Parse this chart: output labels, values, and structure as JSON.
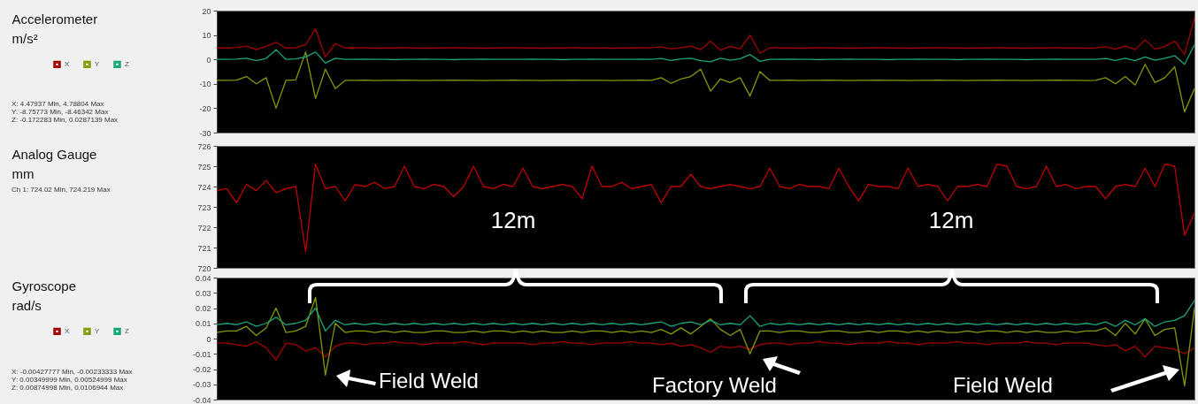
{
  "chart_data": [
    {
      "type": "line",
      "ylabel": "Accelerometer\nm/s²",
      "legend": "left",
      "tick_labels": "y",
      "categories": [
        null,
        null,
        null,
        null,
        null,
        null,
        null,
        null,
        null,
        null,
        null,
        null,
        null,
        null,
        null,
        null,
        null,
        null,
        null,
        null,
        null,
        null,
        null,
        null,
        null,
        null,
        null,
        null,
        null,
        null,
        null,
        null,
        null,
        null,
        null,
        null,
        null,
        null,
        null,
        null,
        null,
        null,
        null,
        null,
        null,
        null,
        null,
        null,
        null,
        null,
        null,
        null,
        null,
        null,
        null,
        null,
        null,
        null,
        null,
        null,
        null,
        null,
        null,
        null,
        null,
        null,
        null,
        null,
        null,
        null,
        null,
        null,
        null,
        null,
        null,
        null,
        null,
        null,
        null,
        null,
        null,
        null,
        null,
        null,
        null,
        null,
        null,
        null,
        null,
        null,
        null,
        null,
        null,
        null,
        null,
        null,
        null,
        null,
        null,
        null
      ],
      "ylim": [
        -30,
        20
      ],
      "yticks": [
        -30,
        -20,
        -10,
        0,
        10,
        20
      ],
      "series": [
        {
          "name": "X",
          "color": "#a30000",
          "values": [
            4.7,
            4.7,
            4.8,
            5.5,
            4.0,
            5.4,
            7.0,
            4.6,
            4.8,
            6.0,
            12.5,
            1.0,
            6.5,
            4.7,
            4.7,
            4.8,
            4.6,
            4.7,
            4.7,
            4.8,
            4.7,
            4.6,
            4.7,
            4.7,
            4.8,
            4.7,
            4.7,
            4.6,
            4.7,
            4.7,
            4.8,
            4.7,
            4.7,
            4.6,
            4.7,
            4.7,
            4.8,
            4.7,
            4.7,
            4.7,
            4.6,
            4.7,
            4.7,
            4.8,
            4.7,
            5.2,
            4.3,
            4.8,
            5.5,
            4.0,
            7.5,
            3.8,
            5.3,
            4.3,
            10.0,
            2.5,
            4.8,
            4.7,
            4.7,
            4.6,
            4.7,
            4.8,
            4.7,
            4.7,
            4.6,
            4.7,
            4.7,
            4.8,
            4.7,
            4.7,
            4.6,
            4.7,
            4.7,
            4.8,
            4.7,
            4.7,
            4.6,
            4.7,
            4.7,
            4.8,
            4.7,
            4.7,
            4.6,
            4.7,
            4.7,
            4.8,
            4.7,
            4.7,
            4.6,
            4.7,
            5.2,
            4.2,
            5.5,
            4.0,
            8.0,
            4.2,
            5.3,
            7.5,
            2.0,
            17.0
          ]
        },
        {
          "name": "Y",
          "color": "#7f9c00",
          "values": [
            -8.6,
            -8.6,
            -8.5,
            -7.0,
            -10.0,
            -7.5,
            -20.0,
            -8.6,
            -8.4,
            3.0,
            -16.0,
            -4.0,
            -12.0,
            -8.6,
            -8.6,
            -8.5,
            -8.7,
            -8.6,
            -8.6,
            -8.5,
            -8.6,
            -8.7,
            -8.6,
            -8.6,
            -8.5,
            -8.6,
            -8.6,
            -8.7,
            -8.6,
            -8.6,
            -8.5,
            -8.6,
            -8.6,
            -8.7,
            -8.6,
            -8.6,
            -8.5,
            -8.6,
            -8.6,
            -8.6,
            -8.7,
            -8.6,
            -8.6,
            -8.5,
            -8.6,
            -7.5,
            -9.8,
            -8.0,
            -7.0,
            -4.0,
            -13.0,
            -8.0,
            -9.5,
            -7.5,
            -15.0,
            -5.0,
            -8.6,
            -8.6,
            -8.5,
            -8.7,
            -8.6,
            -8.6,
            -8.5,
            -8.6,
            -8.7,
            -8.6,
            -8.6,
            -8.5,
            -8.6,
            -8.6,
            -8.7,
            -8.6,
            -8.6,
            -8.5,
            -8.6,
            -8.6,
            -8.7,
            -8.6,
            -8.6,
            -8.5,
            -8.6,
            -8.6,
            -8.7,
            -8.6,
            -8.6,
            -8.5,
            -8.6,
            -8.6,
            -8.7,
            -8.6,
            -7.5,
            -10.0,
            -7.0,
            -10.5,
            -2.0,
            -9.5,
            -7.5,
            -3.0,
            -21.5,
            -12.0
          ]
        },
        {
          "name": "Z",
          "color": "#1aa57c",
          "values": [
            0,
            0,
            0.1,
            0.5,
            -0.5,
            0.4,
            4.0,
            0,
            0.2,
            1.0,
            3.0,
            -1.5,
            0.5,
            0,
            0,
            0.1,
            0,
            0,
            -0.1,
            0,
            0,
            0.1,
            0,
            0,
            -0.1,
            0,
            0,
            0.1,
            0,
            0,
            0,
            0,
            0.1,
            0,
            0,
            -0.1,
            0,
            0,
            0.1,
            0,
            0,
            0,
            0,
            0.1,
            0,
            0.4,
            -0.4,
            0.2,
            0.5,
            -0.5,
            -1.0,
            0.5,
            -0.3,
            0.3,
            2.0,
            -0.8,
            0,
            0,
            0.1,
            0,
            0,
            -0.1,
            0,
            0,
            0.1,
            0,
            0,
            0,
            -0.1,
            0,
            0,
            0.1,
            0,
            0,
            0,
            -0.1,
            0,
            0,
            0.1,
            0,
            0,
            0,
            -0.1,
            0,
            0,
            0.1,
            0,
            0,
            0,
            0,
            0.4,
            -0.4,
            0.5,
            -0.5,
            1.0,
            -0.3,
            0.5,
            1.5,
            -2.0,
            6.0
          ]
        }
      ],
      "annotations": [
        "X: 4.47937 Min, 4.78804 Max",
        "Y: -8.75773 Min, -8.46342 Max",
        "Z: -0.172283 Min, 0.0287139 Max"
      ]
    },
    {
      "type": "line",
      "ylabel": "Analog Gauge\nmm",
      "tick_labels": "y",
      "categories": [
        null,
        null,
        null,
        null,
        null,
        null,
        null,
        null,
        null,
        null,
        null,
        null,
        null,
        null,
        null,
        null,
        null,
        null,
        null,
        null,
        null,
        null,
        null,
        null,
        null,
        null,
        null,
        null,
        null,
        null,
        null,
        null,
        null,
        null,
        null,
        null,
        null,
        null,
        null,
        null,
        null,
        null,
        null,
        null,
        null,
        null,
        null,
        null,
        null,
        null,
        null,
        null,
        null,
        null,
        null,
        null,
        null,
        null,
        null,
        null,
        null,
        null,
        null,
        null,
        null,
        null,
        null,
        null,
        null,
        null,
        null,
        null,
        null,
        null,
        null,
        null,
        null,
        null,
        null,
        null,
        null,
        null,
        null,
        null,
        null,
        null,
        null,
        null,
        null,
        null,
        null,
        null,
        null,
        null,
        null,
        null,
        null,
        null,
        null,
        null
      ],
      "ylim": [
        720,
        726
      ],
      "yticks": [
        720,
        721,
        722,
        723,
        724,
        725,
        726
      ],
      "color": "#c00000",
      "values": [
        723.8,
        723.9,
        723.2,
        724.1,
        723.8,
        724.3,
        723.7,
        723.9,
        724.0,
        720.8,
        725.1,
        723.9,
        724.0,
        723.3,
        724.1,
        724.0,
        724.2,
        723.9,
        724.0,
        725.0,
        724.0,
        723.9,
        724.1,
        724.0,
        723.5,
        724.0,
        725.0,
        724.0,
        723.9,
        724.1,
        724.0,
        724.9,
        724.0,
        723.9,
        724.0,
        724.1,
        724.0,
        723.4,
        725.0,
        724.0,
        724.0,
        724.2,
        723.9,
        724.0,
        724.1,
        723.2,
        724.0,
        724.0,
        724.6,
        724.0,
        723.9,
        724.0,
        724.1,
        724.0,
        723.9,
        724.0,
        724.9,
        724.0,
        723.9,
        724.1,
        724.0,
        724.0,
        723.9,
        724.9,
        724.0,
        723.3,
        724.1,
        724.0,
        724.0,
        723.9,
        724.9,
        724.0,
        724.1,
        724.0,
        723.3,
        724.0,
        724.0,
        724.1,
        724.0,
        725.1,
        725.0,
        724.0,
        723.9,
        724.0,
        725.0,
        724.0,
        724.1,
        723.9,
        724.0,
        724.0,
        723.4,
        724.0,
        724.1,
        724.0,
        724.9,
        724.0,
        725.1,
        725.0,
        721.6,
        722.7
      ],
      "annotations": [
        "Ch 1: 724.02 Min, 724.219 Max",
        "12m",
        "12m"
      ]
    },
    {
      "type": "line",
      "ylabel": "Gyroscope\nrad/s",
      "legend": "left",
      "tick_labels": "y",
      "categories": [
        null,
        null,
        null,
        null,
        null,
        null,
        null,
        null,
        null,
        null,
        null,
        null,
        null,
        null,
        null,
        null,
        null,
        null,
        null,
        null,
        null,
        null,
        null,
        null,
        null,
        null,
        null,
        null,
        null,
        null,
        null,
        null,
        null,
        null,
        null,
        null,
        null,
        null,
        null,
        null,
        null,
        null,
        null,
        null,
        null,
        null,
        null,
        null,
        null,
        null,
        null,
        null,
        null,
        null,
        null,
        null,
        null,
        null,
        null,
        null,
        null,
        null,
        null,
        null,
        null,
        null,
        null,
        null,
        null,
        null,
        null,
        null,
        null,
        null,
        null,
        null,
        null,
        null,
        null,
        null,
        null,
        null,
        null,
        null,
        null,
        null,
        null,
        null,
        null,
        null,
        null,
        null,
        null,
        null,
        null,
        null,
        null,
        null,
        null,
        null
      ],
      "ylim": [
        -0.04,
        0.04
      ],
      "yticks": [
        -0.04,
        -0.03,
        -0.02,
        -0.01,
        0,
        0.01,
        0.02,
        0.03,
        0.04
      ],
      "series": [
        {
          "name": "X",
          "color": "#a30000",
          "values": [
            -0.003,
            -0.003,
            -0.004,
            -0.005,
            -0.002,
            -0.006,
            -0.014,
            -0.003,
            -0.004,
            -0.008,
            -0.006,
            -0.012,
            -0.005,
            -0.003,
            -0.003,
            -0.004,
            -0.003,
            -0.003,
            -0.002,
            -0.003,
            -0.003,
            -0.004,
            -0.003,
            -0.003,
            -0.003,
            -0.002,
            -0.003,
            -0.004,
            -0.003,
            -0.003,
            -0.003,
            -0.003,
            -0.004,
            -0.003,
            -0.003,
            -0.002,
            -0.003,
            -0.003,
            -0.004,
            -0.003,
            -0.003,
            -0.003,
            -0.002,
            -0.003,
            -0.003,
            -0.004,
            -0.003,
            -0.005,
            -0.004,
            -0.006,
            -0.009,
            -0.005,
            -0.006,
            -0.005,
            -0.007,
            -0.004,
            -0.003,
            -0.003,
            -0.004,
            -0.003,
            -0.003,
            -0.002,
            -0.003,
            -0.003,
            -0.004,
            -0.003,
            -0.003,
            -0.003,
            -0.002,
            -0.003,
            -0.003,
            -0.004,
            -0.003,
            -0.003,
            -0.003,
            -0.002,
            -0.003,
            -0.003,
            -0.004,
            -0.003,
            -0.003,
            -0.003,
            -0.002,
            -0.003,
            -0.003,
            -0.004,
            -0.003,
            -0.003,
            -0.003,
            -0.004,
            -0.005,
            -0.004,
            -0.008,
            -0.005,
            -0.012,
            -0.005,
            -0.006,
            -0.007,
            -0.01,
            -0.006
          ]
        },
        {
          "name": "Y",
          "color": "#7f9c00",
          "values": [
            0.004,
            0.005,
            0.005,
            0.008,
            0.002,
            0.007,
            0.02,
            0.004,
            0.005,
            0.008,
            0.027,
            -0.024,
            0.01,
            0.004,
            0.005,
            0.005,
            0.004,
            0.005,
            0.004,
            0.005,
            0.004,
            0.004,
            0.005,
            0.005,
            0.004,
            0.004,
            0.005,
            0.004,
            0.005,
            0.005,
            0.004,
            0.005,
            0.004,
            0.005,
            0.004,
            0.004,
            0.005,
            0.004,
            0.005,
            0.005,
            0.004,
            0.005,
            0.004,
            0.005,
            0.004,
            0.006,
            0.003,
            0.007,
            0.003,
            0.008,
            0.013,
            0.006,
            0.002,
            0.006,
            -0.01,
            0.005,
            0.005,
            0.004,
            0.005,
            0.005,
            0.004,
            0.004,
            0.005,
            0.005,
            0.004,
            0.004,
            0.005,
            0.004,
            0.005,
            0.005,
            0.004,
            0.005,
            0.004,
            0.005,
            0.004,
            0.004,
            0.005,
            0.004,
            0.005,
            0.005,
            0.004,
            0.005,
            0.004,
            0.005,
            0.004,
            0.004,
            0.005,
            0.004,
            0.005,
            0.005,
            0.007,
            0.002,
            0.01,
            0.003,
            0.013,
            0.002,
            0.006,
            0.007,
            -0.031,
            0.02
          ]
        },
        {
          "name": "Z",
          "color": "#1aa57c",
          "values": [
            0.009,
            0.01,
            0.009,
            0.011,
            0.008,
            0.01,
            0.014,
            0.009,
            0.01,
            0.012,
            0.02,
            0.005,
            0.012,
            0.009,
            0.01,
            0.009,
            0.01,
            0.009,
            0.01,
            0.009,
            0.01,
            0.009,
            0.01,
            0.009,
            0.01,
            0.009,
            0.01,
            0.009,
            0.01,
            0.009,
            0.01,
            0.009,
            0.01,
            0.009,
            0.01,
            0.009,
            0.01,
            0.009,
            0.01,
            0.009,
            0.01,
            0.009,
            0.01,
            0.009,
            0.01,
            0.011,
            0.008,
            0.01,
            0.011,
            0.009,
            0.012,
            0.009,
            0.01,
            0.009,
            0.015,
            0.008,
            0.01,
            0.009,
            0.01,
            0.009,
            0.01,
            0.009,
            0.01,
            0.009,
            0.01,
            0.009,
            0.01,
            0.009,
            0.01,
            0.009,
            0.01,
            0.009,
            0.01,
            0.009,
            0.01,
            0.009,
            0.01,
            0.009,
            0.01,
            0.009,
            0.01,
            0.009,
            0.01,
            0.009,
            0.01,
            0.009,
            0.01,
            0.009,
            0.01,
            0.009,
            0.011,
            0.008,
            0.012,
            0.009,
            0.013,
            0.008,
            0.011,
            0.012,
            0.015,
            0.025
          ]
        }
      ],
      "annotations": [
        "X: -0.00427777 Min, -0.00233333 Max",
        "Y: 0.00349999 Min, 0.00524999 Max",
        "Z: 0.00874998 Min, 0.0106944 Max",
        "Field Weld",
        "Factory Weld",
        "Field Weld"
      ]
    }
  ]
}
